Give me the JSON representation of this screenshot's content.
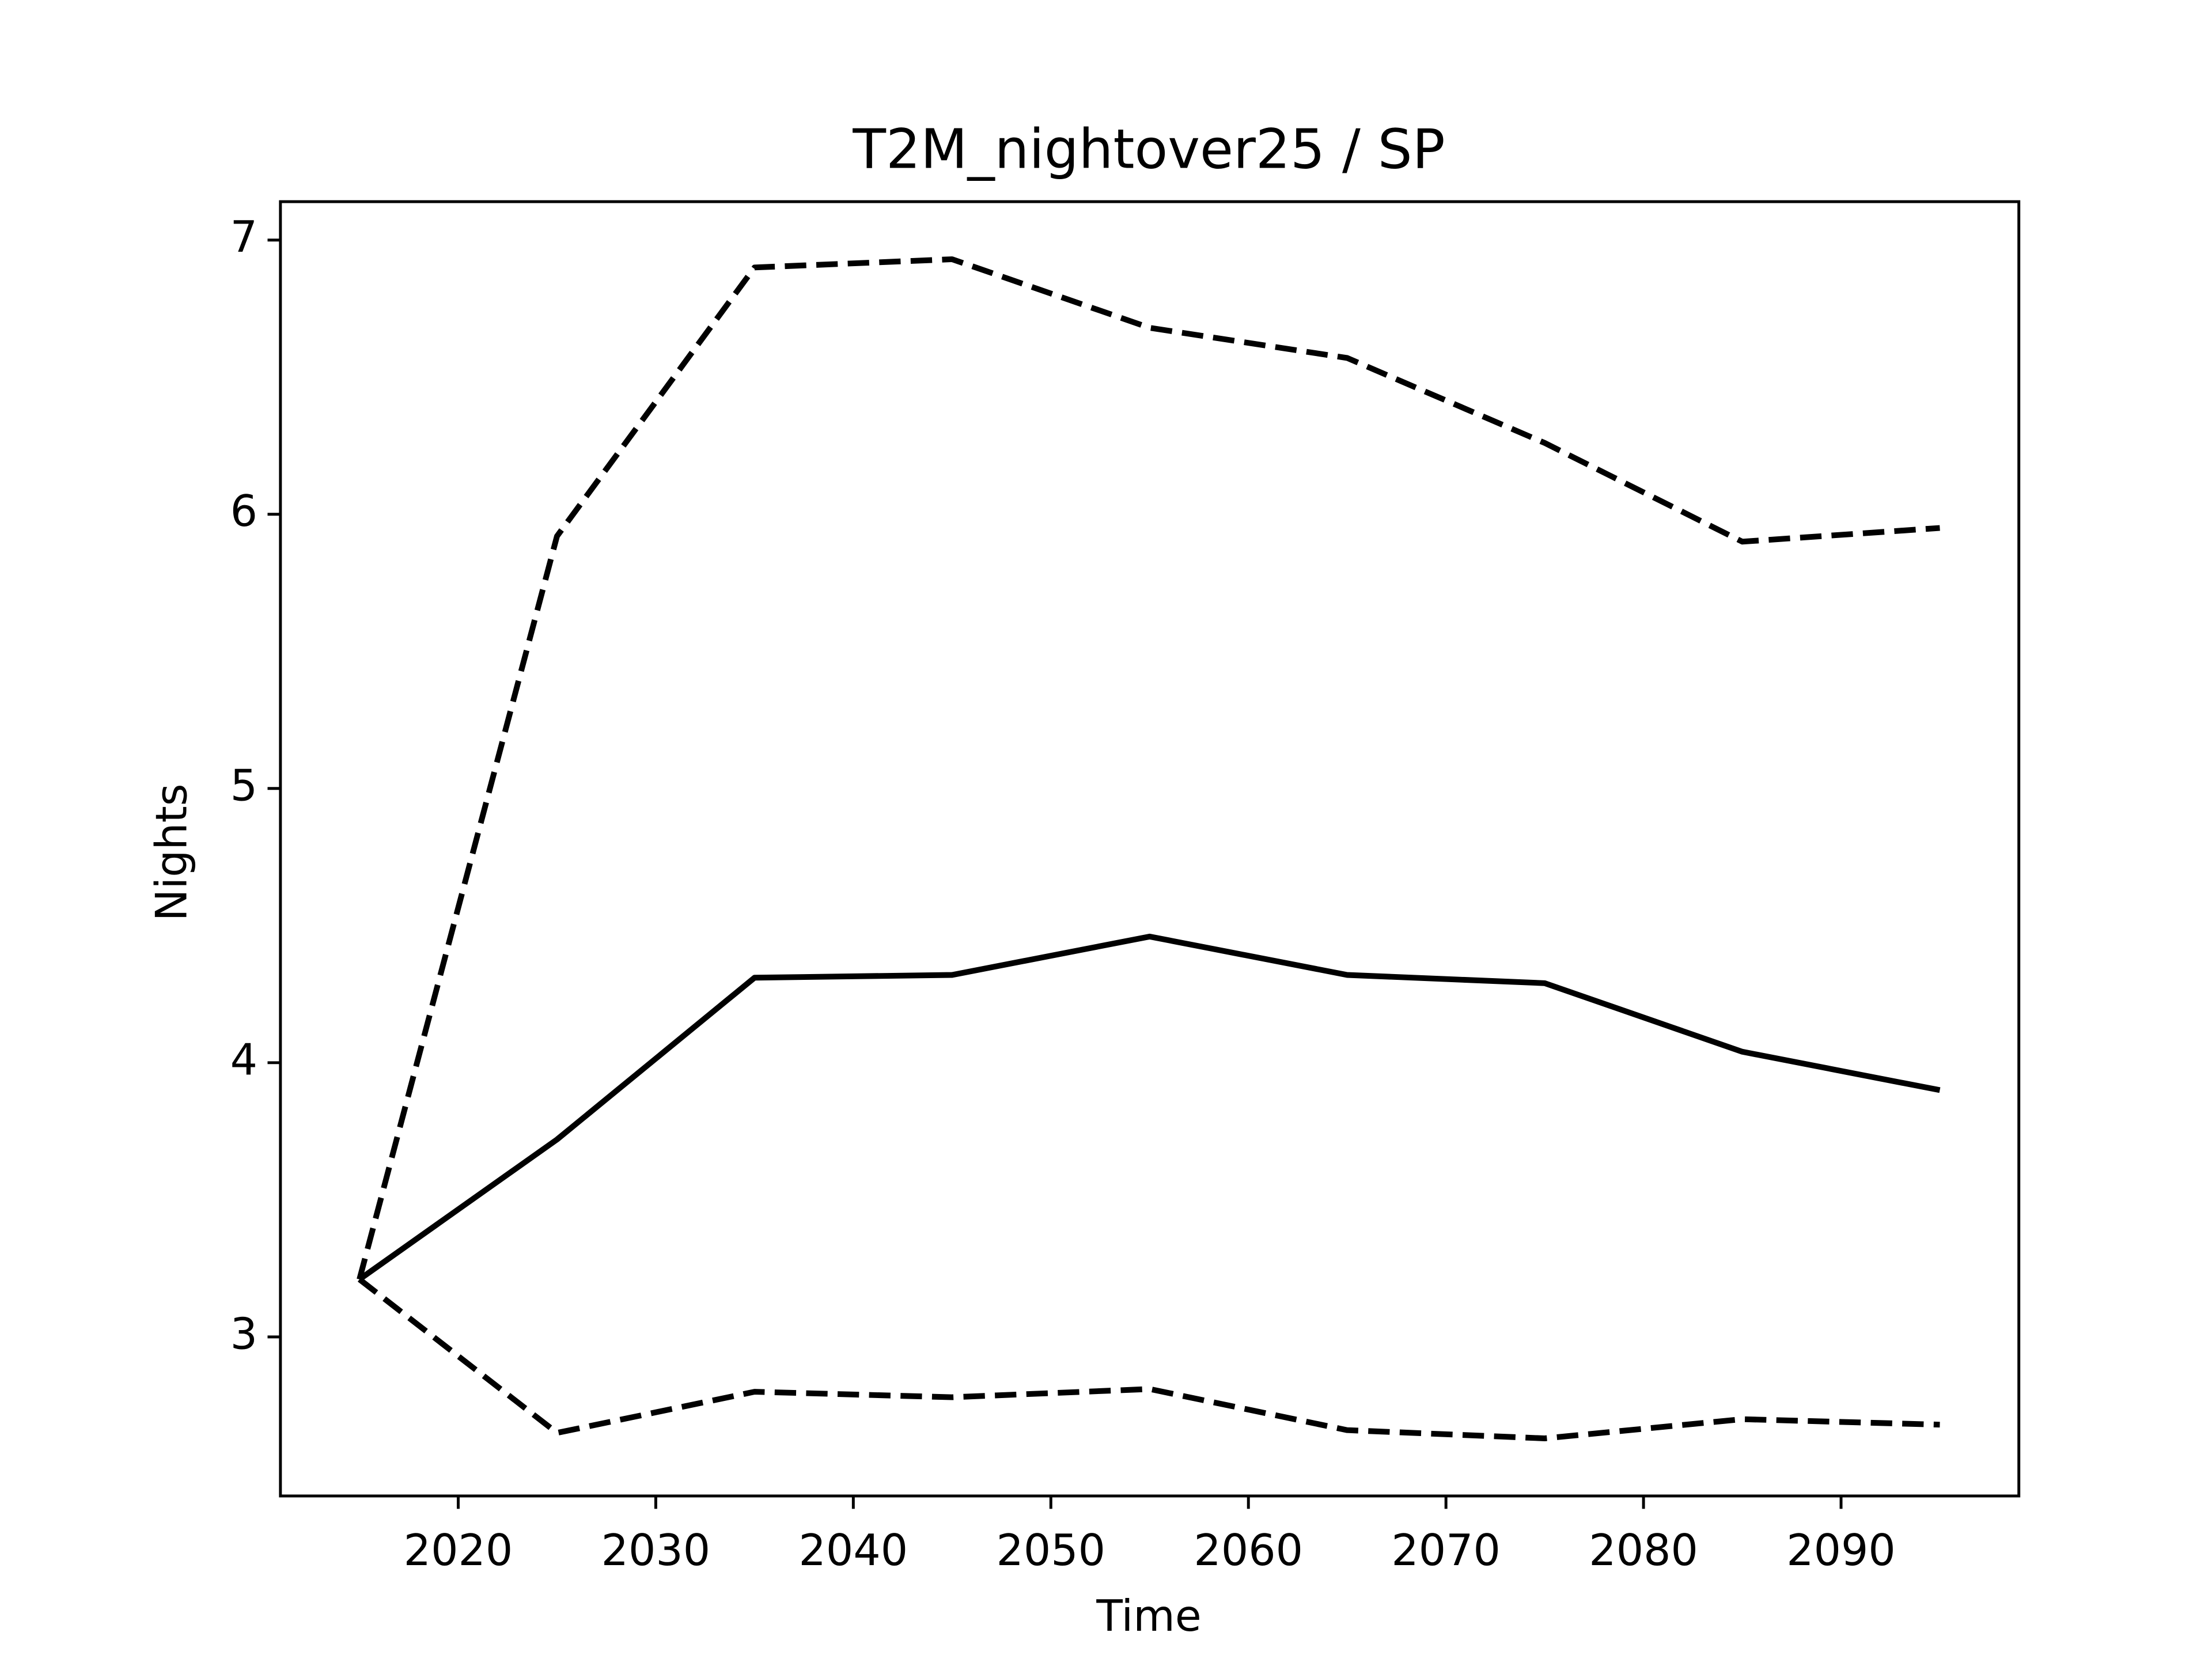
{
  "chart_data": {
    "type": "line",
    "title": "T2M_nightover25 / SP",
    "xlabel": "Time",
    "ylabel": "Nights",
    "x": [
      2015,
      2025,
      2035,
      2045,
      2055,
      2065,
      2075,
      2085,
      2095
    ],
    "series": [
      {
        "color": "#000000",
        "linestyle": "solid",
        "values": [
          3.21,
          3.72,
          4.31,
          4.32,
          4.46,
          4.32,
          4.29,
          4.04,
          3.9
        ]
      },
      {
        "color": "#000000",
        "linestyle": "dashed",
        "values": [
          3.21,
          5.92,
          6.9,
          6.93,
          6.68,
          6.57,
          6.26,
          5.9,
          5.95
        ]
      },
      {
        "color": "#000000",
        "linestyle": "dashed",
        "values": [
          3.21,
          2.65,
          2.8,
          2.78,
          2.81,
          2.66,
          2.63,
          2.7,
          2.68
        ]
      }
    ],
    "xlim": [
      2011,
      2099
    ],
    "xticks": [
      2020,
      2030,
      2040,
      2050,
      2060,
      2070,
      2080,
      2090
    ],
    "ylim": [
      2.42,
      7.14
    ],
    "yticks": [
      3,
      4,
      5,
      6,
      7
    ],
    "grid": false
  }
}
